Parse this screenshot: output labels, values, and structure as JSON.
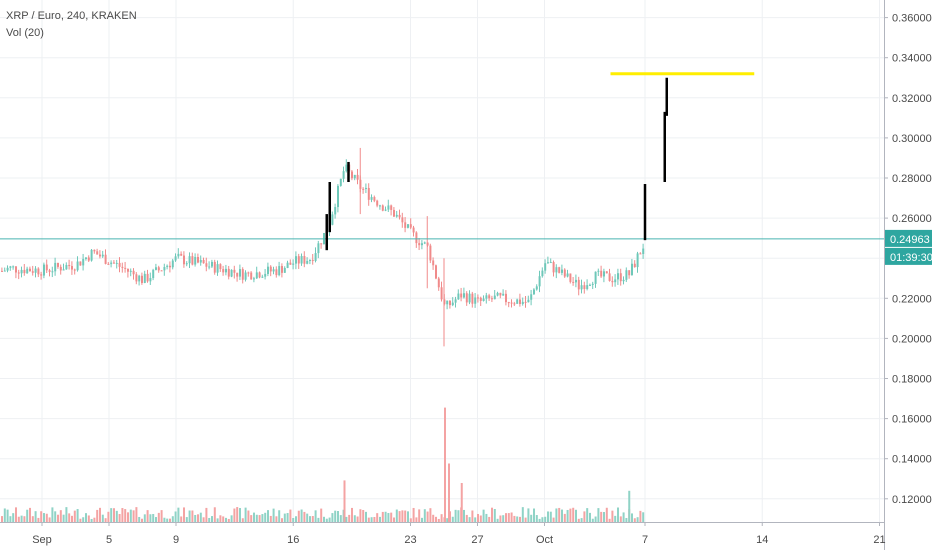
{
  "legend": {
    "symbol_line": "XRP / Euro, 240, KRAKEN",
    "volume_line": "Vol (20)"
  },
  "colors": {
    "up": "#6ec8b9",
    "down": "#f08a8a",
    "vol_up": "#8fd3c6",
    "vol_down": "#f4a3a3",
    "grid": "#eef0f3",
    "price_line": "#49b5b0",
    "badge": "#2ea6a0",
    "highlight": "#ffee00",
    "drawn_bars": "#000000"
  },
  "chart_data": {
    "type": "candlestick",
    "symbol": "XRP / Euro",
    "interval": "240",
    "exchange": "KRAKEN",
    "indicator": "Vol (20)",
    "x_axis": {
      "tick_labels": [
        "Sep",
        "5",
        "9",
        "16",
        "23",
        "27",
        "Oct",
        "7",
        "14",
        "21"
      ]
    },
    "y_axis": {
      "tick_labels": [
        "0.36000",
        "0.34000",
        "0.32000",
        "0.30000",
        "0.28000",
        "0.26000",
        "0.24000",
        "0.22000",
        "0.20000",
        "0.18000",
        "0.16000",
        "0.14000",
        "0.12000"
      ],
      "range": [
        0.11,
        0.368
      ]
    },
    "current_price": "0.24963",
    "countdown": "01:39:30",
    "price_path": [
      {
        "date": "2019-08-29",
        "price": 0.232
      },
      {
        "date": "2019-08-30",
        "price": 0.235
      },
      {
        "date": "2019-09-01",
        "price": 0.234
      },
      {
        "date": "2019-09-03",
        "price": 0.237
      },
      {
        "date": "2019-09-04",
        "price": 0.243
      },
      {
        "date": "2019-09-06",
        "price": 0.234
      },
      {
        "date": "2019-09-07",
        "price": 0.229
      },
      {
        "date": "2019-09-09",
        "price": 0.24
      },
      {
        "date": "2019-09-11",
        "price": 0.236
      },
      {
        "date": "2019-09-13",
        "price": 0.232
      },
      {
        "date": "2019-09-15",
        "price": 0.234
      },
      {
        "date": "2019-09-16",
        "price": 0.238
      },
      {
        "date": "2019-09-17",
        "price": 0.24
      },
      {
        "date": "2019-09-18",
        "price": 0.255
      },
      {
        "date": "2019-09-19",
        "price": 0.285
      },
      {
        "date": "2019-09-20",
        "price": 0.275
      },
      {
        "date": "2019-09-21",
        "price": 0.268
      },
      {
        "date": "2019-09-22",
        "price": 0.262
      },
      {
        "date": "2019-09-23",
        "price": 0.252
      },
      {
        "date": "2019-09-24",
        "price": 0.245
      },
      {
        "date": "2019-09-25",
        "price": 0.215
      },
      {
        "date": "2019-09-26",
        "price": 0.222
      },
      {
        "date": "2019-09-27",
        "price": 0.218
      },
      {
        "date": "2019-09-28",
        "price": 0.22
      },
      {
        "date": "2019-09-30",
        "price": 0.218
      },
      {
        "date": "2019-10-01",
        "price": 0.238
      },
      {
        "date": "2019-10-02",
        "price": 0.232
      },
      {
        "date": "2019-10-03",
        "price": 0.226
      },
      {
        "date": "2019-10-04",
        "price": 0.231
      },
      {
        "date": "2019-10-05",
        "price": 0.23
      },
      {
        "date": "2019-10-06",
        "price": 0.232
      },
      {
        "date": "2019-10-07",
        "price": 0.249
      }
    ],
    "spikes": [
      {
        "date": "2019-09-20",
        "low": 0.262,
        "high": 0.295
      },
      {
        "date": "2019-09-25",
        "low": 0.196,
        "high": 0.24
      },
      {
        "date": "2019-09-24",
        "low": 0.225,
        "high": 0.261
      }
    ],
    "drawn_bars": [
      {
        "date": "2019-09-18",
        "low": 0.244,
        "high": 0.262
      },
      {
        "date": "2019-09-18",
        "low": 0.253,
        "high": 0.278
      },
      {
        "date": "2019-09-19",
        "low": 0.278,
        "high": 0.288
      },
      {
        "date": "2019-10-07",
        "low": 0.249,
        "high": 0.277
      },
      {
        "date": "2019-10-08",
        "low": 0.278,
        "high": 0.313
      },
      {
        "date": "2019-10-08",
        "low": 0.311,
        "high": 0.33
      }
    ],
    "target_line": {
      "price": 0.332,
      "from": "2019-10-05",
      "to": "2019-10-14"
    },
    "volume_spikes": [
      {
        "date": "2019-09-19",
        "value": 0.32
      },
      {
        "date": "2019-09-25",
        "value": 0.88
      },
      {
        "date": "2019-09-25",
        "value": 0.45
      },
      {
        "date": "2019-09-26",
        "value": 0.3
      },
      {
        "date": "2019-10-06",
        "value": 0.24
      }
    ]
  }
}
